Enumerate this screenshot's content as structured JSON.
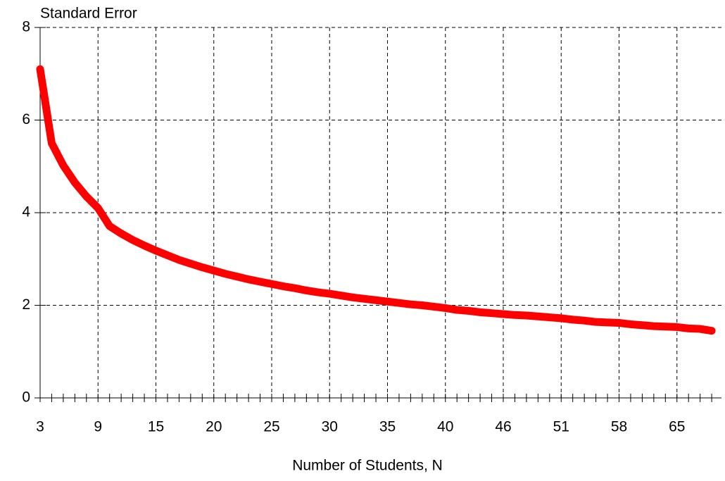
{
  "chart_data": {
    "type": "line",
    "y_label": "Standard Error",
    "x_label": "Number of Students, N",
    "categories": [
      "3",
      null,
      null,
      null,
      null,
      "9",
      null,
      null,
      null,
      null,
      "15",
      null,
      null,
      null,
      null,
      "20",
      null,
      null,
      null,
      null,
      "25",
      null,
      null,
      null,
      null,
      "30",
      null,
      null,
      null,
      null,
      "35",
      null,
      null,
      null,
      null,
      "40",
      null,
      null,
      null,
      null,
      "46",
      null,
      null,
      null,
      null,
      "51",
      null,
      null,
      null,
      null,
      "58",
      null,
      null,
      null,
      null,
      "65",
      null,
      null,
      null
    ],
    "series": [
      {
        "color": "#ff0000",
        "values": [
          7.1,
          5.5,
          5.02,
          4.65,
          4.35,
          4.1,
          3.71,
          3.55,
          3.41,
          3.29,
          3.18,
          3.08,
          2.98,
          2.9,
          2.82,
          2.75,
          2.68,
          2.62,
          2.56,
          2.51,
          2.46,
          2.41,
          2.37,
          2.32,
          2.28,
          2.25,
          2.21,
          2.17,
          2.14,
          2.11,
          2.08,
          2.05,
          2.02,
          2.0,
          1.97,
          1.94,
          1.9,
          1.88,
          1.85,
          1.83,
          1.81,
          1.79,
          1.78,
          1.76,
          1.74,
          1.72,
          1.69,
          1.67,
          1.64,
          1.63,
          1.62,
          1.59,
          1.57,
          1.55,
          1.54,
          1.53,
          1.5,
          1.49,
          1.45
        ]
      }
    ],
    "ylim": [
      0,
      8
    ],
    "yticks": [
      0,
      2,
      4,
      6,
      8
    ],
    "grid": true
  }
}
